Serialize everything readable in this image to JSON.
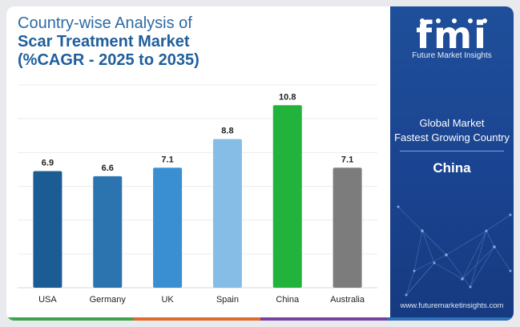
{
  "header": {
    "line1": "Country-wise Analysis of",
    "line2": "Scar Treatment Market",
    "line3": "(%CAGR - 2025 to 2035)"
  },
  "panel": {
    "logo_letters": "fmi",
    "logo_caption": "Future Market Insights",
    "line1": "Global Market",
    "line2": "Fastest Growing Country",
    "country": "China",
    "website": "www.futuremarketinsights.com"
  },
  "colors": {
    "panel_blue": "#1f4f9a",
    "title_blue": "#1f5f9c",
    "bottom_stripes": [
      "#3fa34d",
      "#e06a2c",
      "#7b3fa0",
      "#2d6fb8"
    ]
  },
  "chart_data": {
    "type": "bar",
    "title": "",
    "xlabel": "",
    "ylabel": "",
    "ylim": [
      0,
      12
    ],
    "grid": true,
    "categories": [
      "USA",
      "Germany",
      "UK",
      "Spain",
      "China",
      "Australia"
    ],
    "values": [
      6.9,
      6.6,
      7.1,
      8.8,
      10.8,
      7.1
    ],
    "value_labels": [
      "6.9",
      "6.6",
      "7.1",
      "8.8",
      "10.8",
      "7.1"
    ],
    "bar_colors": [
      "#1b5c94",
      "#2b74b0",
      "#3a8fd2",
      "#86bde6",
      "#21b33c",
      "#7c7c7c"
    ]
  }
}
